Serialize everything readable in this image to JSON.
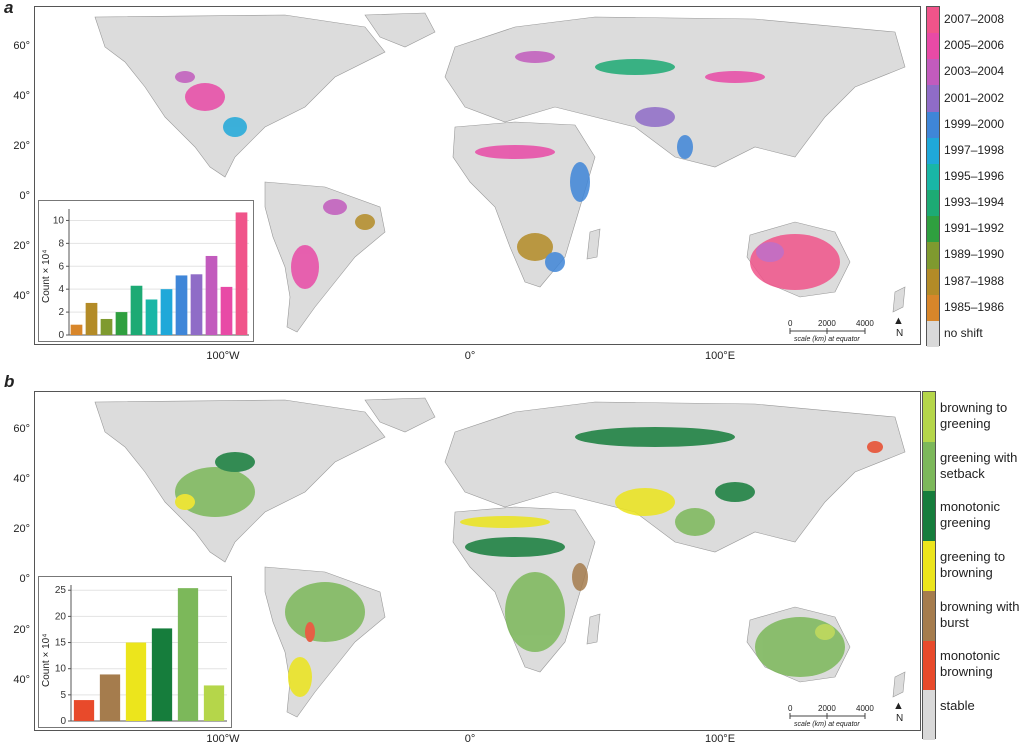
{
  "panel_a": {
    "letter": "a",
    "lat_labels": [
      "60°",
      "40°",
      "20°",
      "0°",
      "20°",
      "40°"
    ],
    "lon_labels": [
      "100°W",
      "0°",
      "100°E"
    ],
    "legend": [
      {
        "label": "2007–2008",
        "color": "#f0548a"
      },
      {
        "label": "2005–2006",
        "color": "#e84aa6"
      },
      {
        "label": "2003–2004",
        "color": "#c25bbd"
      },
      {
        "label": "2001–2002",
        "color": "#8f6cc7"
      },
      {
        "label": "1999–2000",
        "color": "#3f86d8"
      },
      {
        "label": "1997–1998",
        "color": "#1fa8d9"
      },
      {
        "label": "1995–1996",
        "color": "#19b6a6"
      },
      {
        "label": "1993–1994",
        "color": "#1daa74"
      },
      {
        "label": "1991–1992",
        "color": "#2f9f3f"
      },
      {
        "label": "1989–1990",
        "color": "#7f9a2f"
      },
      {
        "label": "1987–1988",
        "color": "#b38b27"
      },
      {
        "label": "1985–1986",
        "color": "#d8862a"
      },
      {
        "label": "no shift",
        "color": "#d9d9d9"
      }
    ],
    "scale": {
      "ticks": [
        "0",
        "2000",
        "4000"
      ],
      "caption": "scale (km) at equator",
      "north": "N"
    }
  },
  "panel_b": {
    "letter": "b",
    "lat_labels": [
      "60°",
      "40°",
      "20°",
      "0°",
      "20°",
      "40°"
    ],
    "lon_labels": [
      "100°W",
      "0°",
      "100°E"
    ],
    "legend": [
      {
        "label": "browning to greening",
        "color": "#b5d64a"
      },
      {
        "label": "greening with setback",
        "color": "#7cb85a"
      },
      {
        "label": "monotonic greening",
        "color": "#167d3c"
      },
      {
        "label": "greening to browning",
        "color": "#ece51c"
      },
      {
        "label": "browning with burst",
        "color": "#a57c4d"
      },
      {
        "label": "monotonic browning",
        "color": "#e84a2b"
      },
      {
        "label": "stable",
        "color": "#d9d9d9"
      }
    ],
    "scale": {
      "ticks": [
        "0",
        "2000",
        "4000"
      ],
      "caption": "scale (km) at equator",
      "north": "N"
    }
  },
  "chart_data": [
    {
      "type": "bar",
      "ylabel": "Count × 10⁴",
      "ylim": [
        0,
        11
      ],
      "yticks": [
        0,
        2,
        4,
        6,
        8,
        10
      ],
      "colors": [
        "#d8862a",
        "#b38b27",
        "#7f9a2f",
        "#2f9f3f",
        "#1daa74",
        "#19b6a6",
        "#1fa8d9",
        "#3f86d8",
        "#8f6cc7",
        "#c25bbd",
        "#e84aa6",
        "#f0548a"
      ],
      "values": [
        0.9,
        2.8,
        1.4,
        2.0,
        4.3,
        3.1,
        4.0,
        5.2,
        5.3,
        6.9,
        4.2,
        10.7
      ]
    },
    {
      "type": "bar",
      "ylabel": "Count × 10⁴",
      "ylim": [
        0,
        26
      ],
      "yticks": [
        0,
        5,
        10,
        15,
        20,
        25
      ],
      "colors": [
        "#e84a2b",
        "#a57c4d",
        "#ece51c",
        "#167d3c",
        "#7cb85a",
        "#b5d64a"
      ],
      "values": [
        4.0,
        8.9,
        15.0,
        17.7,
        25.4,
        6.8
      ]
    }
  ]
}
